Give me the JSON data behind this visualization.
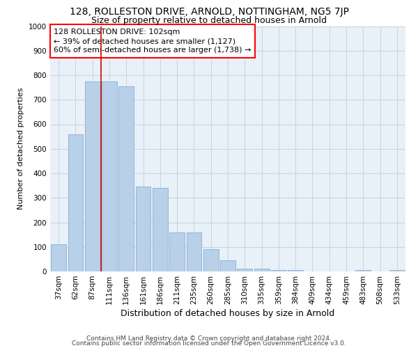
{
  "title": "128, ROLLESTON DRIVE, ARNOLD, NOTTINGHAM, NG5 7JP",
  "subtitle": "Size of property relative to detached houses in Arnold",
  "xlabel": "Distribution of detached houses by size in Arnold",
  "ylabel": "Number of detached properties",
  "categories": [
    "37sqm",
    "62sqm",
    "87sqm",
    "111sqm",
    "136sqm",
    "161sqm",
    "186sqm",
    "211sqm",
    "235sqm",
    "260sqm",
    "285sqm",
    "310sqm",
    "335sqm",
    "359sqm",
    "384sqm",
    "409sqm",
    "434sqm",
    "459sqm",
    "483sqm",
    "508sqm",
    "533sqm"
  ],
  "values": [
    110,
    560,
    775,
    775,
    755,
    345,
    340,
    160,
    160,
    90,
    45,
    10,
    10,
    5,
    5,
    0,
    0,
    0,
    5,
    0,
    5
  ],
  "bar_color": "#b8d0e8",
  "bar_edge_color": "#8aaece",
  "vline_x": 2.5,
  "vline_color": "#cc0000",
  "annotation_box_text": "128 ROLLESTON DRIVE: 102sqm\n← 39% of detached houses are smaller (1,127)\n60% of semi-detached houses are larger (1,738) →",
  "ylim": [
    0,
    1000
  ],
  "yticks": [
    0,
    100,
    200,
    300,
    400,
    500,
    600,
    700,
    800,
    900,
    1000
  ],
  "background_color": "#ffffff",
  "plot_bg_color": "#e8f0f8",
  "grid_color": "#c8d4e0",
  "footer_line1": "Contains HM Land Registry data © Crown copyright and database right 2024.",
  "footer_line2": "Contains public sector information licensed under the Open Government Licence v3.0.",
  "title_fontsize": 10,
  "subtitle_fontsize": 9,
  "xlabel_fontsize": 9,
  "ylabel_fontsize": 8,
  "tick_fontsize": 7.5,
  "annotation_fontsize": 8,
  "footer_fontsize": 6.5
}
